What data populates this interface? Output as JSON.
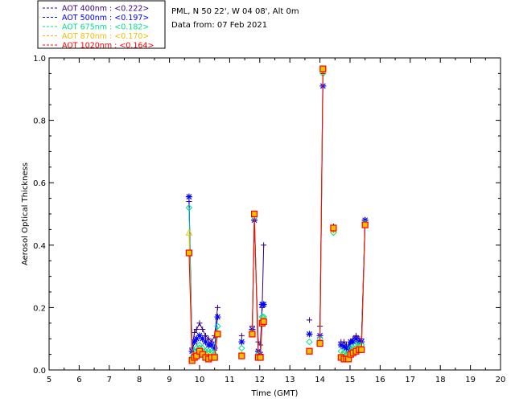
{
  "chart_data": {
    "type": "line",
    "title": "",
    "xlabel": "Time (GMT)",
    "ylabel": "Aerosol Optical Thickness",
    "xlim": [
      5,
      20
    ],
    "ylim": [
      0.0,
      1.0
    ],
    "x_ticks": [
      "5",
      "6",
      "7",
      "8",
      "9",
      "10",
      "11",
      "12",
      "13",
      "14",
      "15",
      "16",
      "17",
      "18",
      "19",
      "20"
    ],
    "y_ticks": [
      "0.0",
      "0.2",
      "0.4",
      "0.6",
      "0.8",
      "1.0"
    ],
    "info_lines": [
      "PML, N 50 22', W 04 08', Alt 0m",
      "Data from: 07 Feb 2021"
    ],
    "legend_position": "top-left",
    "series": [
      {
        "name": "AOT  400nm : <0.222>",
        "color": "#3a007a",
        "marker": "plus",
        "segments": [
          [
            [
              9.65,
              0.54
            ],
            [
              9.75,
              0.07
            ],
            [
              9.83,
              0.12
            ],
            [
              9.9,
              0.13
            ],
            [
              10.0,
              0.15
            ],
            [
              10.1,
              0.13
            ],
            [
              10.2,
              0.11
            ],
            [
              10.3,
              0.1
            ],
            [
              10.4,
              0.09
            ],
            [
              10.5,
              0.11
            ],
            [
              10.6,
              0.2
            ]
          ],
          [
            [
              11.4,
              0.11
            ]
          ],
          [
            [
              11.75,
              0.14
            ],
            [
              11.82,
              0.48
            ],
            [
              11.95,
              0.09
            ],
            [
              12.02,
              0.08
            ],
            [
              12.08,
              0.2
            ],
            [
              12.13,
              0.4
            ]
          ],
          [
            [
              13.65,
              0.16
            ]
          ],
          [
            [
              14.0,
              0.14
            ],
            [
              14.1,
              0.95
            ]
          ],
          [
            [
              14.45,
              0.46
            ]
          ],
          [
            [
              14.7,
              0.09
            ],
            [
              14.8,
              0.09
            ],
            [
              14.88,
              0.08
            ],
            [
              14.95,
              0.08
            ],
            [
              15.02,
              0.09
            ],
            [
              15.1,
              0.1
            ],
            [
              15.2,
              0.11
            ],
            [
              15.3,
              0.1
            ],
            [
              15.38,
              0.1
            ],
            [
              15.5,
              0.48
            ]
          ]
        ]
      },
      {
        "name": "AOT  500nm : <0.197>",
        "color": "#0000ff",
        "marker": "asterisk",
        "segments": [
          [
            [
              9.65,
              0.555
            ],
            [
              9.75,
              0.06
            ],
            [
              9.83,
              0.09
            ],
            [
              9.9,
              0.1
            ],
            [
              10.0,
              0.11
            ],
            [
              10.1,
              0.1
            ],
            [
              10.2,
              0.09
            ],
            [
              10.3,
              0.08
            ],
            [
              10.4,
              0.08
            ],
            [
              10.5,
              0.07
            ],
            [
              10.6,
              0.17
            ]
          ],
          [
            [
              11.4,
              0.09
            ]
          ],
          [
            [
              11.75,
              0.13
            ],
            [
              11.82,
              0.48
            ],
            [
              11.95,
              0.06
            ],
            [
              12.02,
              0.05
            ],
            [
              12.08,
              0.21
            ],
            [
              12.13,
              0.21
            ]
          ],
          [
            [
              13.65,
              0.115
            ]
          ],
          [
            [
              14.0,
              0.11
            ],
            [
              14.1,
              0.91
            ]
          ],
          [
            [
              14.45,
              0.45
            ]
          ],
          [
            [
              14.7,
              0.08
            ],
            [
              14.8,
              0.075
            ],
            [
              14.88,
              0.07
            ],
            [
              14.95,
              0.07
            ],
            [
              15.02,
              0.09
            ],
            [
              15.1,
              0.09
            ],
            [
              15.2,
              0.1
            ],
            [
              15.3,
              0.09
            ],
            [
              15.38,
              0.09
            ],
            [
              15.5,
              0.48
            ]
          ]
        ]
      },
      {
        "name": "AOT  675nm : <0.182>",
        "color": "#00e08a",
        "marker": "diamond",
        "segments": [
          [
            [
              9.65,
              0.52
            ],
            [
              9.75,
              0.04
            ],
            [
              9.83,
              0.06
            ],
            [
              9.9,
              0.07
            ],
            [
              10.0,
              0.08
            ],
            [
              10.1,
              0.07
            ],
            [
              10.2,
              0.06
            ],
            [
              10.3,
              0.06
            ],
            [
              10.4,
              0.06
            ],
            [
              10.5,
              0.05
            ],
            [
              10.6,
              0.14
            ]
          ],
          [
            [
              11.4,
              0.07
            ]
          ],
          [
            [
              11.75,
              0.12
            ],
            [
              11.82,
              0.49
            ],
            [
              11.95,
              0.05
            ],
            [
              12.02,
              0.04
            ],
            [
              12.08,
              0.17
            ],
            [
              12.13,
              0.17
            ]
          ],
          [
            [
              13.65,
              0.09
            ]
          ],
          [
            [
              14.0,
              0.1
            ],
            [
              14.1,
              0.95
            ]
          ],
          [
            [
              14.45,
              0.44
            ]
          ],
          [
            [
              14.7,
              0.06
            ],
            [
              14.8,
              0.055
            ],
            [
              14.88,
              0.05
            ],
            [
              14.95,
              0.05
            ],
            [
              15.02,
              0.07
            ],
            [
              15.1,
              0.07
            ],
            [
              15.2,
              0.08
            ],
            [
              15.3,
              0.08
            ],
            [
              15.38,
              0.08
            ],
            [
              15.5,
              0.47
            ]
          ]
        ]
      },
      {
        "name": "AOT  870nm : <0.170>",
        "color": "#f0c000",
        "marker": "triangle",
        "segments": [
          [
            [
              9.65,
              0.44
            ],
            [
              9.75,
              0.035
            ],
            [
              9.83,
              0.05
            ],
            [
              9.9,
              0.05
            ],
            [
              10.0,
              0.065
            ],
            [
              10.1,
              0.06
            ],
            [
              10.2,
              0.05
            ],
            [
              10.3,
              0.045
            ],
            [
              10.4,
              0.045
            ],
            [
              10.5,
              0.045
            ],
            [
              10.6,
              0.12
            ]
          ],
          [
            [
              11.4,
              0.05
            ]
          ],
          [
            [
              11.75,
              0.115
            ],
            [
              11.82,
              0.5
            ],
            [
              11.95,
              0.04
            ],
            [
              12.02,
              0.04
            ],
            [
              12.08,
              0.16
            ],
            [
              12.13,
              0.16
            ]
          ],
          [
            [
              13.65,
              0.06
            ]
          ],
          [
            [
              14.0,
              0.09
            ],
            [
              14.1,
              0.96
            ]
          ],
          [
            [
              14.45,
              0.45
            ]
          ],
          [
            [
              14.7,
              0.045
            ],
            [
              14.8,
              0.04
            ],
            [
              14.88,
              0.04
            ],
            [
              14.95,
              0.04
            ],
            [
              15.02,
              0.055
            ],
            [
              15.1,
              0.06
            ],
            [
              15.2,
              0.07
            ],
            [
              15.3,
              0.07
            ],
            [
              15.38,
              0.07
            ],
            [
              15.5,
              0.465
            ]
          ]
        ]
      },
      {
        "name": "AOT 1020nm : <0.164>",
        "color": "#ff0000",
        "marker": "square",
        "segments": [
          [
            [
              9.65,
              0.375
            ],
            [
              9.75,
              0.03
            ],
            [
              9.83,
              0.04
            ],
            [
              9.9,
              0.045
            ],
            [
              10.0,
              0.06
            ],
            [
              10.1,
              0.05
            ],
            [
              10.2,
              0.04
            ],
            [
              10.3,
              0.035
            ],
            [
              10.4,
              0.04
            ],
            [
              10.5,
              0.04
            ],
            [
              10.6,
              0.115
            ]
          ],
          [
            [
              11.4,
              0.045
            ]
          ],
          [
            [
              11.75,
              0.115
            ],
            [
              11.82,
              0.5
            ],
            [
              11.95,
              0.04
            ],
            [
              12.02,
              0.04
            ],
            [
              12.08,
              0.15
            ],
            [
              12.13,
              0.155
            ]
          ],
          [
            [
              13.65,
              0.06
            ]
          ],
          [
            [
              14.0,
              0.085
            ],
            [
              14.1,
              0.965
            ]
          ],
          [
            [
              14.45,
              0.455
            ]
          ],
          [
            [
              14.7,
              0.04
            ],
            [
              14.8,
              0.035
            ],
            [
              14.88,
              0.035
            ],
            [
              14.95,
              0.035
            ],
            [
              15.02,
              0.05
            ],
            [
              15.1,
              0.055
            ],
            [
              15.2,
              0.06
            ],
            [
              15.3,
              0.065
            ],
            [
              15.38,
              0.065
            ],
            [
              15.5,
              0.465
            ]
          ]
        ]
      }
    ]
  }
}
